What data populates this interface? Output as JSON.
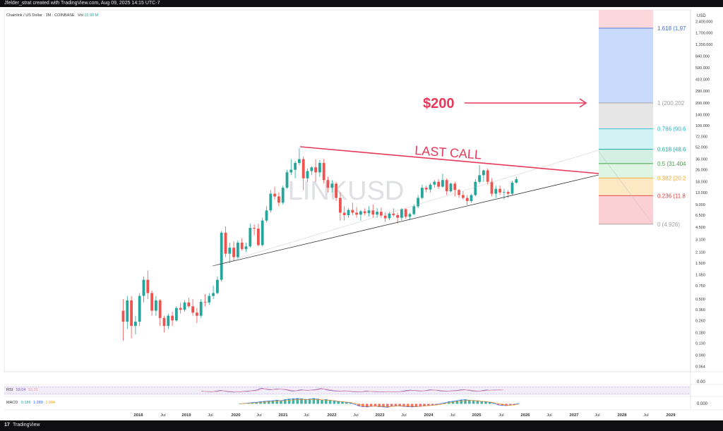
{
  "header": {
    "attribution": "Jfelder_strat created with TradingView.com, Aug 09, 2025 14:15 UTC-7"
  },
  "footer": {
    "brand": "TradingView",
    "logo_text": "17"
  },
  "symbol_info": {
    "name": "Chainlink / US Dollar · 1M · COINBASE",
    "vol_label": "Vol",
    "vol_value": "15.99 M"
  },
  "watermark": "LINKUSD",
  "colors": {
    "bull": "#26a69a",
    "bear": "#ef5350",
    "accent": "#e8395b",
    "fib_blue": "#3e6fd9"
  },
  "annotations": {
    "target_label": "$200",
    "pattern_label": "LAST CALL"
  },
  "indicators": {
    "rsi": {
      "label": "RSI",
      "v1": "59.04",
      "v2": "53.31",
      "c1": "#7e57c2",
      "c2": "#ef9a9a"
    },
    "macd": {
      "label": "MACD",
      "v1": "0.186",
      "v2": "1.280",
      "v3": "1.094",
      "c1": "#26a69a",
      "c2": "#2962ff",
      "c3": "#ff9800"
    },
    "rsi_axis": "0.00",
    "macd_axis": "0.000"
  },
  "chart_data": {
    "type": "candlestick",
    "title": "Chainlink / US Dollar · 1M · COINBASE",
    "y_scale": "log",
    "y_unit": "USD",
    "x_ticks": [
      "2018",
      "Jul",
      "2019",
      "Jul",
      "2020",
      "Jul",
      "2021",
      "Jul",
      "2022",
      "Jul",
      "2023",
      "Jul",
      "2024",
      "Jul",
      "2025",
      "Jul",
      "2026",
      "Jul",
      "2027",
      "Jul",
      "2028",
      "Jul",
      "2029"
    ],
    "y_ticks": [
      "2,400.000",
      "1,700.000",
      "1,200.000",
      "840.000",
      "590.000",
      "410.000",
      "290.000",
      "200.000",
      "140.000",
      "100.000",
      "72.000",
      "52.000",
      "36.000",
      "26.000",
      "18.000",
      "13.000",
      "9.000",
      "6.500",
      "4.500",
      "3.100",
      "2.100",
      "1.500",
      "1.050",
      "0.750",
      "0.500",
      "0.360",
      "0.260",
      "0.180",
      "0.130",
      "0.090",
      "0.064"
    ],
    "fib_levels": [
      {
        "ratio": "1.618",
        "label": "1.618 (1,97",
        "value": 1970
      },
      {
        "ratio": "1",
        "label": "1 (200.202",
        "value": 200.2
      },
      {
        "ratio": "0.786",
        "label": "0.786 (90.6",
        "value": 90.6
      },
      {
        "ratio": "0.618",
        "label": "0.618 (48.6",
        "value": 48.6
      },
      {
        "ratio": "0.5",
        "label": "0.5 (31.404",
        "value": 31.4
      },
      {
        "ratio": "0.382",
        "label": "0.382 (20.2",
        "value": 20.2
      },
      {
        "ratio": "0.236",
        "label": "0.236 (11.8",
        "value": 11.8
      },
      {
        "ratio": "0",
        "label": "0 (4.926)",
        "value": 4.926
      }
    ],
    "candles": [
      [
        0.35,
        0.5,
        0.14,
        0.25
      ],
      [
        0.25,
        0.55,
        0.2,
        0.48
      ],
      [
        0.48,
        0.55,
        0.15,
        0.22
      ],
      [
        0.22,
        0.3,
        0.17,
        0.25
      ],
      [
        0.25,
        0.6,
        0.22,
        0.55
      ],
      [
        0.55,
        1.0,
        0.45,
        0.9
      ],
      [
        0.9,
        1.2,
        0.5,
        0.6
      ],
      [
        0.6,
        0.65,
        0.3,
        0.35
      ],
      [
        0.35,
        0.55,
        0.3,
        0.48
      ],
      [
        0.48,
        0.5,
        0.22,
        0.28
      ],
      [
        0.28,
        0.3,
        0.18,
        0.22
      ],
      [
        0.22,
        0.32,
        0.2,
        0.3
      ],
      [
        0.3,
        0.34,
        0.22,
        0.26
      ],
      [
        0.26,
        0.4,
        0.25,
        0.38
      ],
      [
        0.38,
        0.45,
        0.32,
        0.36
      ],
      [
        0.36,
        0.48,
        0.34,
        0.45
      ],
      [
        0.45,
        0.52,
        0.38,
        0.4
      ],
      [
        0.4,
        0.5,
        0.3,
        0.33
      ],
      [
        0.33,
        0.38,
        0.24,
        0.3
      ],
      [
        0.3,
        0.5,
        0.28,
        0.46
      ],
      [
        0.46,
        0.58,
        0.4,
        0.45
      ],
      [
        0.45,
        0.6,
        0.42,
        0.55
      ],
      [
        0.55,
        0.75,
        0.5,
        0.6
      ],
      [
        0.6,
        1.0,
        0.58,
        0.9
      ],
      [
        0.9,
        4.0,
        0.85,
        3.8
      ],
      [
        3.8,
        4.6,
        1.8,
        2.0
      ],
      [
        2.0,
        2.8,
        1.5,
        2.4
      ],
      [
        2.4,
        2.9,
        1.6,
        1.8
      ],
      [
        1.8,
        3.0,
        1.7,
        2.8
      ],
      [
        2.8,
        3.2,
        2.2,
        2.3
      ],
      [
        2.3,
        2.8,
        2.1,
        2.5
      ],
      [
        2.5,
        5.0,
        2.4,
        4.4
      ],
      [
        4.4,
        4.9,
        3.5,
        4.3
      ],
      [
        4.3,
        5.0,
        2.5,
        2.6
      ],
      [
        2.6,
        6.0,
        2.5,
        5.5
      ],
      [
        5.5,
        8.5,
        5.2,
        7.5
      ],
      [
        7.5,
        14.0,
        7.0,
        12.5
      ],
      [
        12.5,
        15.5,
        10.5,
        11.5
      ],
      [
        11.5,
        13.0,
        8.5,
        9.5
      ],
      [
        9.5,
        16.0,
        9.0,
        15.0
      ],
      [
        15.0,
        26.0,
        14.5,
        24.0
      ],
      [
        24.0,
        36.0,
        22.0,
        26.0
      ],
      [
        26.0,
        34.0,
        20.0,
        32.0
      ],
      [
        32.0,
        50.0,
        30.0,
        36.0
      ],
      [
        36.0,
        39.0,
        14.0,
        20.0
      ],
      [
        20.0,
        27.0,
        18.0,
        25.0
      ],
      [
        25.0,
        29.0,
        22.0,
        28.0
      ],
      [
        28.0,
        36.0,
        18.0,
        24.0
      ],
      [
        24.0,
        35.0,
        21.0,
        32.0
      ],
      [
        32.0,
        36.0,
        17.0,
        19.0
      ],
      [
        19.0,
        21.0,
        13.0,
        15.0
      ],
      [
        15.0,
        19.0,
        13.0,
        17.0
      ],
      [
        17.0,
        18.0,
        10.0,
        11.0
      ],
      [
        11.0,
        13.0,
        5.5,
        7.0
      ],
      [
        7.0,
        8.5,
        5.5,
        6.5
      ],
      [
        6.5,
        8.0,
        6.0,
        7.6
      ],
      [
        7.6,
        9.5,
        6.5,
        7.0
      ],
      [
        7.0,
        8.3,
        6.0,
        6.6
      ],
      [
        6.6,
        7.6,
        5.5,
        7.3
      ],
      [
        7.3,
        8.0,
        6.5,
        6.9
      ],
      [
        6.9,
        8.5,
        6.2,
        7.5
      ],
      [
        7.5,
        9.0,
        6.0,
        6.6
      ],
      [
        6.6,
        8.0,
        6.0,
        7.2
      ],
      [
        7.2,
        8.2,
        6.0,
        6.4
      ],
      [
        6.4,
        7.0,
        5.3,
        5.9
      ],
      [
        5.9,
        7.2,
        5.6,
        6.8
      ],
      [
        6.8,
        8.0,
        6.2,
        6.5
      ],
      [
        6.5,
        7.0,
        5.0,
        6.0
      ],
      [
        6.0,
        8.0,
        5.5,
        7.8
      ],
      [
        7.8,
        8.0,
        5.8,
        6.2
      ],
      [
        6.2,
        7.0,
        5.6,
        6.7
      ],
      [
        6.7,
        9.0,
        6.5,
        8.5
      ],
      [
        8.5,
        12.0,
        8.0,
        11.0
      ],
      [
        11.0,
        16.5,
        10.5,
        15.0
      ],
      [
        15.0,
        16.0,
        13.0,
        14.2
      ],
      [
        14.2,
        17.5,
        13.0,
        16.5
      ],
      [
        16.5,
        19.0,
        15.0,
        18.0
      ],
      [
        18.0,
        19.5,
        14.5,
        15.5
      ],
      [
        15.5,
        23.0,
        15.0,
        19.0
      ],
      [
        19.0,
        20.0,
        12.0,
        13.5
      ],
      [
        13.5,
        17.5,
        13.0,
        17.0
      ],
      [
        17.0,
        18.0,
        11.5,
        14.0
      ],
      [
        14.0,
        14.5,
        11.0,
        12.0
      ],
      [
        12.0,
        13.5,
        10.5,
        11.0
      ],
      [
        11.0,
        12.0,
        8.8,
        10.0
      ],
      [
        10.0,
        12.5,
        9.5,
        12.0
      ],
      [
        12.0,
        19.5,
        11.5,
        18.0
      ],
      [
        18.0,
        30.0,
        17.0,
        22.0
      ],
      [
        22.0,
        26.0,
        18.0,
        25.5
      ],
      [
        25.5,
        27.0,
        16.5,
        18.0
      ],
      [
        18.0,
        20.0,
        11.5,
        12.5
      ],
      [
        12.5,
        16.0,
        11.0,
        14.5
      ],
      [
        14.5,
        16.0,
        12.0,
        13.0
      ],
      [
        13.0,
        14.5,
        10.5,
        13.2
      ],
      [
        13.2,
        14.0,
        11.0,
        12.5
      ],
      [
        12.5,
        18.5,
        12.0,
        17.5
      ],
      [
        17.5,
        21.0,
        17.0,
        19.5
      ]
    ],
    "rsi_series": [
      50,
      48,
      45,
      44,
      47,
      52,
      55,
      50,
      46,
      44,
      42,
      44,
      45,
      48,
      50,
      52,
      55,
      60,
      72,
      68,
      62,
      60,
      64,
      66,
      65,
      62,
      58,
      52,
      50,
      55,
      60,
      57,
      55,
      57,
      60,
      63,
      70,
      66,
      58,
      55,
      52,
      50,
      48,
      52,
      50,
      48,
      45,
      44,
      43,
      47,
      50,
      48,
      46,
      45,
      44,
      44,
      46,
      45,
      44,
      43,
      46,
      50,
      55,
      57,
      55,
      53,
      50,
      52,
      56,
      60,
      58,
      56,
      52,
      50,
      48,
      51,
      53,
      55,
      58,
      62,
      58,
      54,
      50,
      48,
      50,
      55,
      58,
      56,
      59,
      58,
      60,
      59
    ],
    "macd_hist": [
      0,
      0.2,
      0.3,
      0.5,
      0.6,
      0.8,
      1.0,
      1.1,
      1.2,
      1.4,
      1.2,
      1.6,
      1.8,
      1.9,
      2.0,
      1.9,
      1.7,
      1.8,
      2.0,
      1.8,
      1.5,
      1.6,
      1.4,
      1.2,
      0.9,
      0.8,
      0.6,
      0.4,
      -0.2,
      -0.8,
      -1.1,
      -1.2,
      -1.0,
      -0.9,
      -1.1,
      -1.2,
      -1.3,
      -1.0,
      -0.8,
      -0.9,
      -1.0,
      -1.1,
      -1.2,
      -1.1,
      -1.0,
      -0.8,
      -0.7,
      -0.5,
      -0.3,
      0.1,
      0.4,
      0.8,
      1.0,
      1.2,
      1.5,
      1.6,
      1.4,
      1.3,
      1.2,
      1.0,
      0.8,
      0.6,
      0.2,
      -0.4,
      -0.6,
      -0.7,
      -0.5,
      -0.3,
      0.2
    ]
  }
}
